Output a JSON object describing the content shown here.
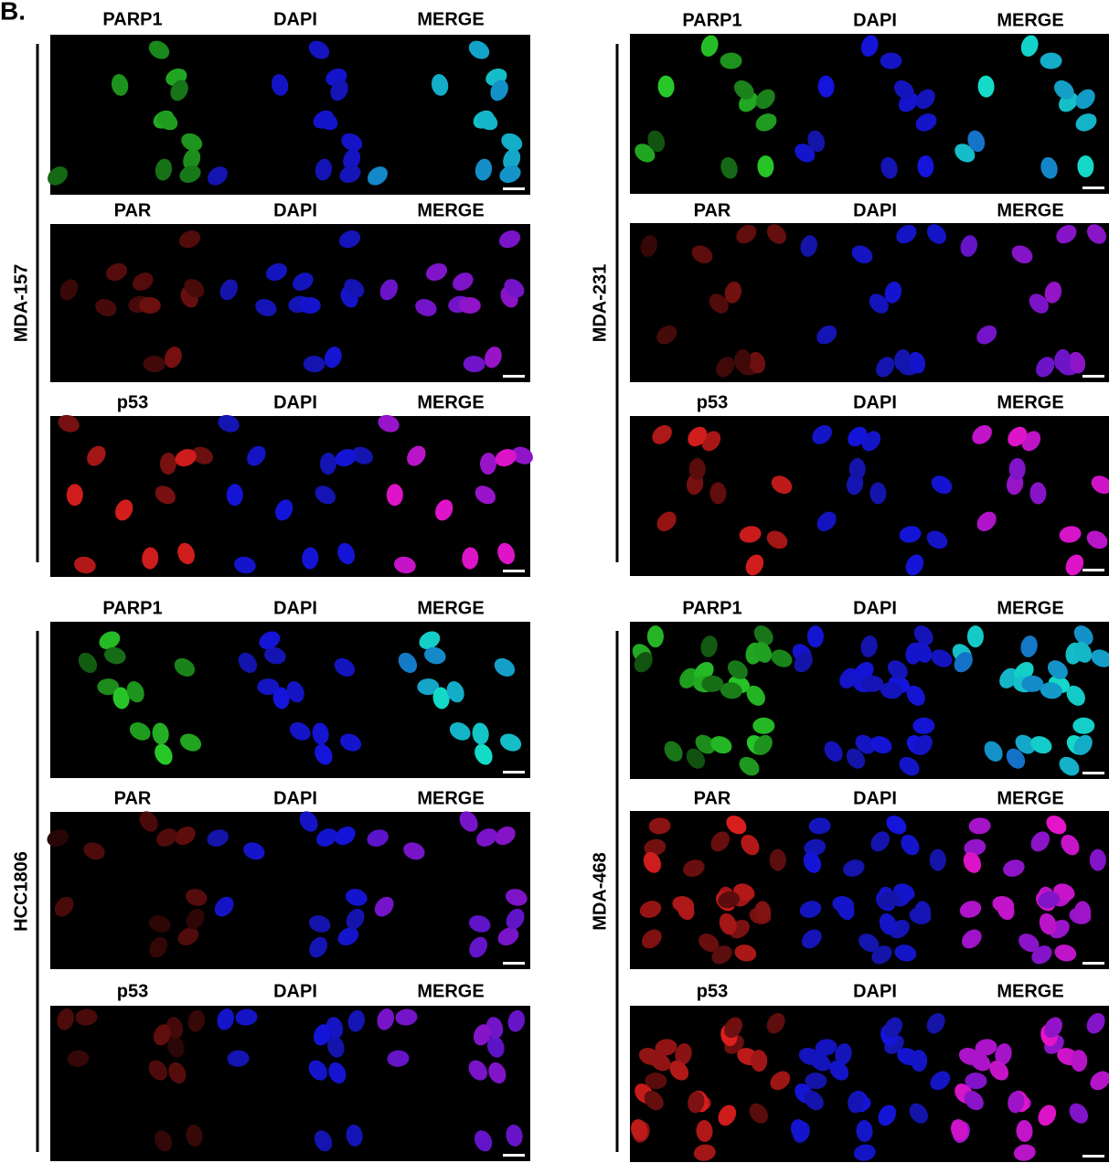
{
  "panel_label": "B.",
  "groups": [
    {
      "cell_line": "MDA-157",
      "rows": [
        {
          "labels": [
            "PARP1",
            "DAPI",
            "MERGE"
          ]
        },
        {
          "labels": [
            "PAR",
            "DAPI",
            "MERGE"
          ]
        },
        {
          "labels": [
            "p53",
            "DAPI",
            "MERGE"
          ]
        }
      ]
    },
    {
      "cell_line": "MDA-231",
      "rows": [
        {
          "labels": [
            "PARP1",
            "DAPI",
            "MERGE"
          ]
        },
        {
          "labels": [
            "PAR",
            "DAPI",
            "MERGE"
          ]
        },
        {
          "labels": [
            "p53",
            "DAPI",
            "MERGE"
          ]
        }
      ]
    },
    {
      "cell_line": "HCC1806",
      "rows": [
        {
          "labels": [
            "PARP1",
            "DAPI",
            "MERGE"
          ]
        },
        {
          "labels": [
            "PAR",
            "DAPI",
            "MERGE"
          ]
        },
        {
          "labels": [
            "p53",
            "DAPI",
            "MERGE"
          ]
        }
      ]
    },
    {
      "cell_line": "MDA-468",
      "rows": [
        {
          "labels": [
            "PARP1",
            "DAPI",
            "MERGE"
          ]
        },
        {
          "labels": [
            "PAR",
            "DAPI",
            "MERGE"
          ]
        },
        {
          "labels": [
            "p53",
            "DAPI",
            "MERGE"
          ]
        }
      ]
    }
  ]
}
